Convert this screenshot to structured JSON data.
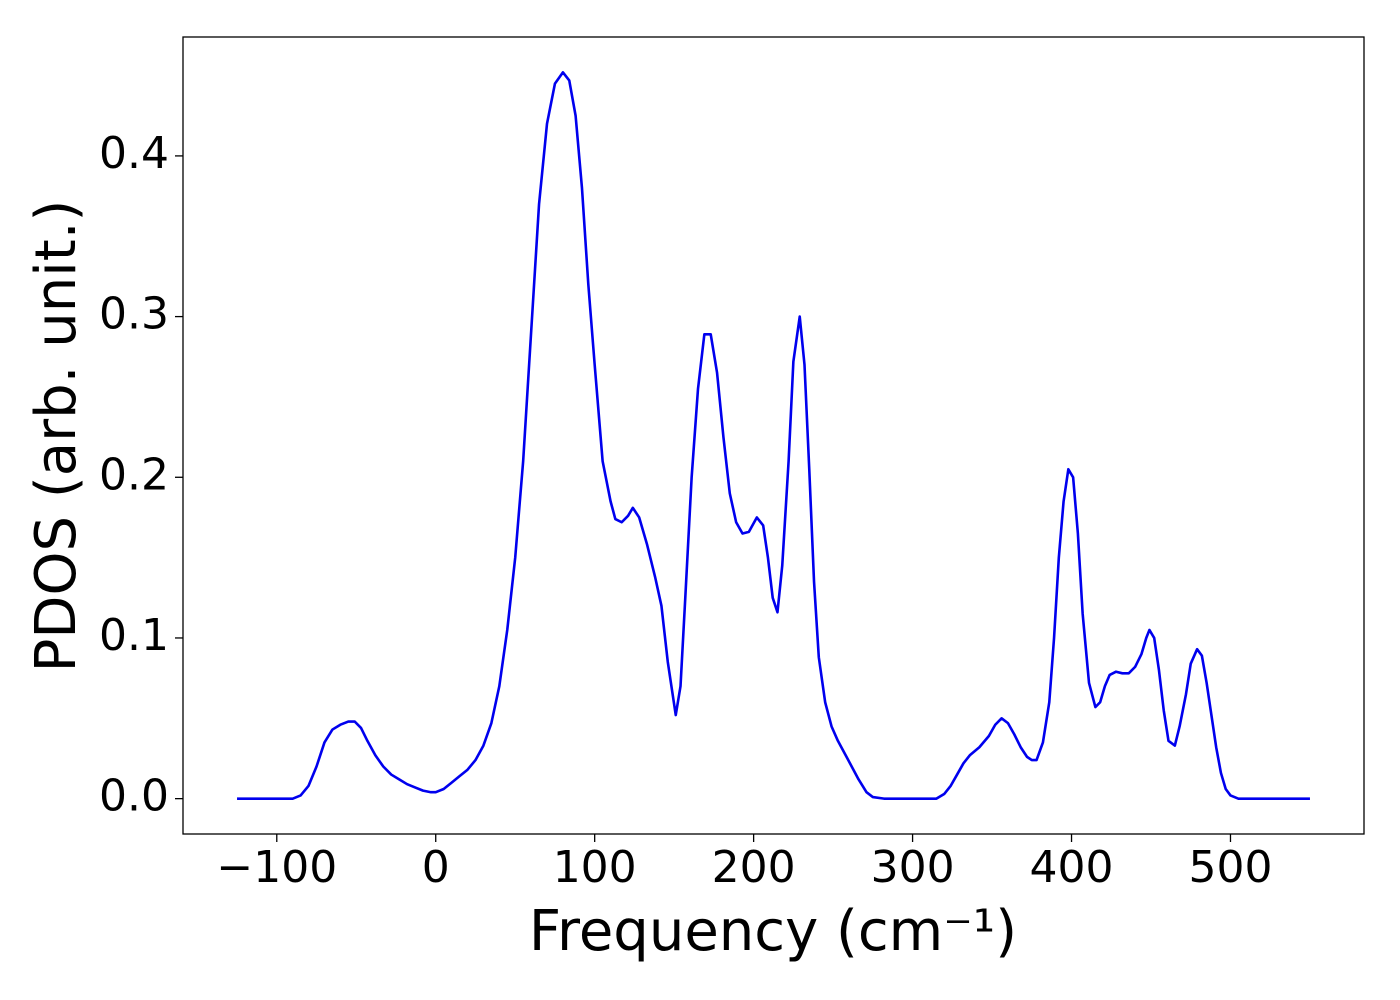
{
  "chart_data": {
    "type": "line",
    "xlabel": "Frequency (cm⁻¹)",
    "ylabel": "PDOS (arb. unit.)",
    "xlim": [
      -159,
      584
    ],
    "ylim": [
      -0.022,
      0.474
    ],
    "xticks": [
      {
        "value": -100,
        "label": "−100"
      },
      0,
      100,
      200,
      300,
      400,
      500
    ],
    "yticks": [
      {
        "value": 0,
        "label": "0.0"
      },
      0.1,
      0.2,
      0.3,
      0.4
    ],
    "color": "#0000ee",
    "x": [
      -125,
      -90,
      -85,
      -80,
      -75,
      -70,
      -65,
      -60,
      -55,
      -51,
      -47,
      -43,
      -38,
      -33,
      -28,
      -23,
      -18,
      -13,
      -8,
      -3,
      0,
      5,
      10,
      15,
      20,
      25,
      30,
      35,
      40,
      45,
      50,
      55,
      60,
      65,
      70,
      75,
      80,
      84,
      88,
      92,
      96,
      100,
      105,
      110,
      113,
      117,
      121,
      124,
      128,
      133,
      138,
      142,
      146,
      151,
      154,
      157,
      161,
      165,
      169,
      173,
      177,
      181,
      185,
      189,
      193,
      197,
      202,
      206,
      209,
      212,
      215,
      218,
      222,
      225,
      229,
      232,
      235,
      238,
      241,
      245,
      249,
      253,
      259,
      266,
      271,
      275,
      282,
      315,
      320,
      324,
      328,
      332,
      336,
      342,
      348,
      352,
      356,
      360,
      364,
      368,
      372,
      375,
      378,
      382,
      386,
      389,
      392,
      395,
      398,
      401,
      404,
      407,
      411,
      415,
      418,
      421,
      424,
      428,
      432,
      436,
      440,
      444,
      447,
      449,
      452,
      455,
      458,
      461,
      465,
      468,
      472,
      475,
      479,
      482,
      485,
      488,
      491,
      494,
      497,
      500,
      505,
      550
    ],
    "values": [
      0,
      0,
      0.002,
      0.008,
      0.02,
      0.035,
      0.043,
      0.046,
      0.048,
      0.048,
      0.044,
      0.036,
      0.027,
      0.02,
      0.015,
      0.012,
      0.009,
      0.007,
      0.005,
      0.004,
      0.004,
      0.006,
      0.01,
      0.014,
      0.018,
      0.024,
      0.033,
      0.047,
      0.07,
      0.105,
      0.15,
      0.21,
      0.29,
      0.37,
      0.42,
      0.445,
      0.452,
      0.447,
      0.425,
      0.38,
      0.32,
      0.27,
      0.21,
      0.185,
      0.174,
      0.172,
      0.176,
      0.181,
      0.175,
      0.158,
      0.138,
      0.12,
      0.085,
      0.052,
      0.07,
      0.125,
      0.2,
      0.255,
      0.289,
      0.289,
      0.265,
      0.225,
      0.19,
      0.172,
      0.165,
      0.166,
      0.175,
      0.17,
      0.15,
      0.125,
      0.116,
      0.145,
      0.21,
      0.272,
      0.3,
      0.27,
      0.205,
      0.135,
      0.088,
      0.06,
      0.045,
      0.036,
      0.025,
      0.012,
      0.004,
      0.001,
      0,
      0,
      0.003,
      0.008,
      0.015,
      0.022,
      0.027,
      0.032,
      0.039,
      0.046,
      0.05,
      0.047,
      0.04,
      0.032,
      0.026,
      0.024,
      0.024,
      0.035,
      0.06,
      0.1,
      0.15,
      0.185,
      0.205,
      0.2,
      0.165,
      0.115,
      0.072,
      0.057,
      0.06,
      0.07,
      0.077,
      0.079,
      0.078,
      0.078,
      0.082,
      0.09,
      0.1,
      0.105,
      0.1,
      0.08,
      0.055,
      0.036,
      0.033,
      0.045,
      0.065,
      0.084,
      0.093,
      0.089,
      0.072,
      0.052,
      0.032,
      0.016,
      0.006,
      0.002,
      0,
      0
    ]
  }
}
